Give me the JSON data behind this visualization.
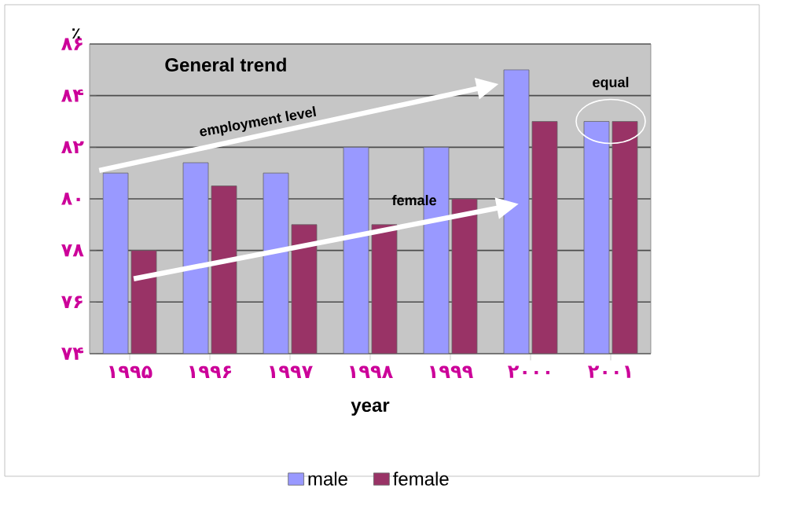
{
  "chart_data": {
    "type": "bar",
    "categories": [
      "۱۹۹۵",
      "۱۹۹۶",
      "۱۹۹۷",
      "۱۹۹۸",
      "۱۹۹۹",
      "۲۰۰۰",
      "۲۰۰۱"
    ],
    "series": [
      {
        "name": "male",
        "color": "#9999ff",
        "values": [
          81.0,
          81.4,
          81.0,
          82.0,
          82.0,
          85.0,
          83.0
        ]
      },
      {
        "name": "female",
        "color": "#993366",
        "values": [
          78.0,
          80.5,
          79.0,
          79.0,
          80.0,
          83.0,
          83.0
        ]
      }
    ],
    "ylim": [
      74,
      86
    ],
    "yticks": [
      {
        "value": 74,
        "label": "۷۴"
      },
      {
        "value": 76,
        "label": "۷۶"
      },
      {
        "value": 78,
        "label": "۷۸"
      },
      {
        "value": 80,
        "label": "۸۰"
      },
      {
        "value": 82,
        "label": "۸۲"
      },
      {
        "value": 84,
        "label": "۸۴"
      },
      {
        "value": 86,
        "label": "۸۶"
      }
    ],
    "ylabel": "٪",
    "xlabel": "year",
    "annotations": [
      "General trend",
      "employment level",
      "female",
      "equal"
    ],
    "grid": "y",
    "legend": "bottom"
  }
}
